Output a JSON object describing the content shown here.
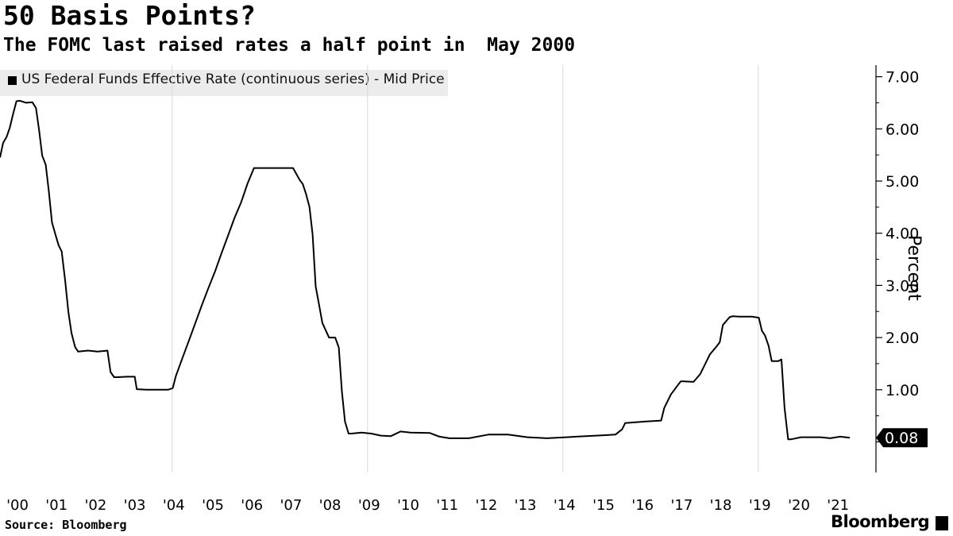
{
  "chart_data": {
    "type": "line",
    "title": "50 Basis Points?",
    "subtitle": "The FOMC last raised rates a half point in  May 2000",
    "ylabel": "Percent",
    "ylim": [
      -0.6,
      7.2
    ],
    "xlim": [
      2000.0,
      2021.85
    ],
    "y_ticks": [
      "7.00",
      "6.00",
      "5.00",
      "4.00",
      "3.00",
      "2.00",
      "1.00"
    ],
    "y_tick_values": [
      7,
      6,
      5,
      4,
      3,
      2,
      1
    ],
    "x_ticks": [
      "'00",
      "'01",
      "'02",
      "'03",
      "'04",
      "'05",
      "'06",
      "'07",
      "'08",
      "'09",
      "'10",
      "'11",
      "'12",
      "'13",
      "'14",
      "'15",
      "'16",
      "'17",
      "'18",
      "'19",
      "'20",
      "'21"
    ],
    "x_tick_years": [
      2000,
      2001,
      2002,
      2003,
      2004,
      2005,
      2006,
      2007,
      2008,
      2009,
      2010,
      2011,
      2012,
      2013,
      2014,
      2015,
      2016,
      2017,
      2018,
      2019,
      2020,
      2021
    ],
    "grid": "vertical",
    "legend_position": "top-left",
    "series": [
      {
        "name": "US Federal Funds Effective Rate (continuous series) - Mid Price",
        "color": "#000000",
        "last_value_label": "0.08",
        "last_value": 0.08,
        "x": [
          2000.0,
          2000.08,
          2000.17,
          2000.25,
          2000.33,
          2000.42,
          2000.5,
          2000.67,
          2000.83,
          2000.92,
          2001.0,
          2001.08,
          2001.17,
          2001.25,
          2001.33,
          2001.42,
          2001.5,
          2001.58,
          2001.67,
          2001.75,
          2001.83,
          2001.92,
          2002.0,
          2002.25,
          2002.5,
          2002.75,
          2002.83,
          2002.92,
          2003.0,
          2003.25,
          2003.45,
          2003.5,
          2003.75,
          2004.0,
          2004.3,
          2004.42,
          2004.5,
          2004.67,
          2004.83,
          2005.0,
          2005.17,
          2005.33,
          2005.5,
          2005.67,
          2005.83,
          2006.0,
          2006.17,
          2006.33,
          2006.5,
          2006.6,
          2007.0,
          2007.5,
          2007.67,
          2007.75,
          2007.83,
          2007.92,
          2008.0,
          2008.08,
          2008.17,
          2008.25,
          2008.42,
          2008.58,
          2008.67,
          2008.75,
          2008.83,
          2008.92,
          2009.0,
          2009.25,
          2009.5,
          2009.75,
          2010.0,
          2010.25,
          2010.5,
          2011.0,
          2011.25,
          2011.5,
          2011.75,
          2012.0,
          2012.5,
          2013.0,
          2013.5,
          2014.0,
          2014.5,
          2014.75,
          2015.0,
          2015.5,
          2015.75,
          2015.92,
          2016.0,
          2016.5,
          2016.92,
          2017.0,
          2017.17,
          2017.42,
          2017.5,
          2017.75,
          2017.92,
          2018.0,
          2018.17,
          2018.33,
          2018.42,
          2018.5,
          2018.67,
          2018.75,
          2018.92,
          2019.0,
          2019.25,
          2019.42,
          2019.5,
          2019.58,
          2019.67,
          2019.75,
          2019.83,
          2019.92,
          2020.0,
          2020.08,
          2020.17,
          2020.25,
          2020.5,
          2020.75,
          2021.0,
          2021.25,
          2021.5,
          2021.75
        ],
        "y": [
          5.45,
          5.73,
          5.85,
          6.02,
          6.27,
          6.53,
          6.54,
          6.5,
          6.51,
          6.4,
          5.98,
          5.49,
          5.31,
          4.8,
          4.21,
          3.97,
          3.77,
          3.65,
          3.07,
          2.49,
          2.09,
          1.82,
          1.73,
          1.75,
          1.73,
          1.75,
          1.34,
          1.24,
          1.24,
          1.25,
          1.25,
          1.01,
          1.0,
          1.0,
          1.0,
          1.03,
          1.26,
          1.61,
          1.93,
          2.28,
          2.63,
          2.94,
          3.26,
          3.62,
          3.94,
          4.29,
          4.59,
          4.94,
          5.25,
          5.25,
          5.25,
          5.25,
          5.02,
          4.94,
          4.76,
          4.5,
          3.98,
          2.98,
          2.61,
          2.28,
          2.0,
          2.0,
          1.81,
          0.97,
          0.39,
          0.16,
          0.16,
          0.18,
          0.16,
          0.12,
          0.11,
          0.2,
          0.18,
          0.17,
          0.1,
          0.07,
          0.07,
          0.07,
          0.14,
          0.14,
          0.09,
          0.07,
          0.09,
          0.1,
          0.11,
          0.13,
          0.14,
          0.24,
          0.36,
          0.39,
          0.41,
          0.65,
          0.91,
          1.16,
          1.16,
          1.15,
          1.3,
          1.42,
          1.68,
          1.82,
          1.91,
          2.24,
          2.39,
          2.41,
          2.4,
          2.4,
          2.4,
          2.38,
          2.13,
          2.04,
          1.84,
          1.55,
          1.55,
          1.55,
          1.58,
          0.65,
          0.05,
          0.05,
          0.09,
          0.09,
          0.09,
          0.07,
          0.1,
          0.08
        ]
      }
    ]
  },
  "footer": {
    "source": "Source: Bloomberg",
    "brand": "Bloomberg"
  }
}
